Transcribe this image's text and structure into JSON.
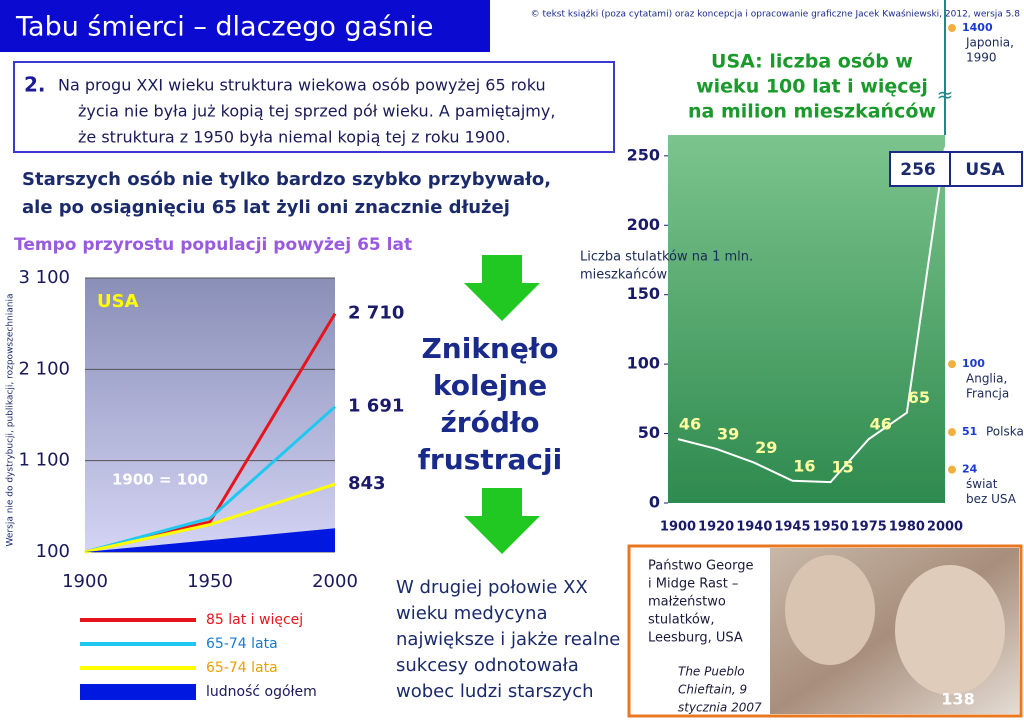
{
  "header": {
    "title": "Tabu śmierci – dlaczego gaśnie",
    "copyright": "© tekst książki (poza cytatami) oraz koncepcja i opracowanie graficzne Jacek Kwaśniewski, 2012, wersja 5.8"
  },
  "box": {
    "number": "2.",
    "lines": [
      "Na progu XXI wieku struktura wiekowa osób powyżej 65 roku",
      "życia nie była już kopią tej sprzed pół wieku. A pamiętajmy,",
      "że struktura z 1950 była niemal kopią tej z roku 1900."
    ]
  },
  "subtitle": [
    "Starszych osób nie tylko bardzo szybko przybywało,",
    "ale po osiągnięciu 65 lat żyli oni znacznie dłużej"
  ],
  "middle": {
    "headline": [
      "Zniknęło",
      "kolejne",
      "źródło",
      "frustracji"
    ],
    "text": [
      "W drugiej połowie XX",
      "wieku medycyna",
      "największe i jakże realne",
      "sukcesy odnotowała",
      "wobec ludzi starszych"
    ]
  },
  "side_note": "Wersja nie do dystrybucji, publikacji, rozpowszechniania",
  "photo": {
    "caption": [
      "Państwo George",
      "i Midge Rast –",
      "małżeństwo",
      "stulatków,",
      "Leesburg, USA"
    ],
    "source": [
      "The Pueblo",
      "Chieftain, 9",
      "stycznia 2007"
    ]
  },
  "page_number": "138",
  "chart_data": [
    {
      "type": "line",
      "title": "Tempo przyrostu populacji powyżej 65 lat",
      "annotations": [
        "USA",
        "1900 = 100"
      ],
      "x": [
        1900,
        1950,
        2000
      ],
      "xlim": [
        1900,
        2000
      ],
      "xticks": [
        1900,
        1950,
        2000
      ],
      "ylim": [
        100,
        3100
      ],
      "yticks": [
        100,
        {
          "value": 1100,
          "label": "1 100"
        },
        {
          "value": 2100,
          "label": "2 100"
        },
        {
          "value": 3100,
          "label": "3 100"
        }
      ],
      "grid": true,
      "series": [
        {
          "name": "85 lat i więcej",
          "color": "#e8141c",
          "values": [
            100,
            430,
            2710
          ],
          "value_labels": [
            null,
            null,
            "2 710"
          ]
        },
        {
          "name": "65-74 lata",
          "color": "#1ec8f0",
          "values": [
            100,
            470,
            1691
          ],
          "value_labels": [
            null,
            null,
            "1 691"
          ]
        },
        {
          "name": "65-74 lata",
          "color": "#ffff00",
          "values": [
            100,
            400,
            843
          ],
          "value_labels": [
            null,
            null,
            "843"
          ]
        },
        {
          "name": "ludność ogółem",
          "color": "#0018e0",
          "values": [
            100,
            230,
            360
          ],
          "type": "area"
        }
      ]
    },
    {
      "type": "line",
      "title": [
        "USA: liczba osób w",
        "wieku 100 lat i więcej",
        "na milion mieszkańców"
      ],
      "y_label": [
        "Liczba stulatków na 1 mln.",
        "mieszkańców"
      ],
      "categories": [
        "1900",
        "1920",
        "1940",
        "1945",
        "1950",
        "1975",
        "1980",
        "2000"
      ],
      "ylim": [
        0,
        265
      ],
      "yticks": [
        0,
        50,
        100,
        150,
        200,
        250
      ],
      "series": [
        {
          "name": "USA",
          "color": "#ffffff",
          "values": [
            46,
            39,
            29,
            16,
            15,
            46,
            65,
            256
          ]
        }
      ],
      "comparisons": [
        {
          "value": 1400,
          "label": [
            "Japonia,",
            "1990"
          ]
        },
        {
          "value": 100,
          "label": [
            "Anglia,",
            "Francja"
          ]
        },
        {
          "value": 51,
          "label": [
            "Polska"
          ]
        },
        {
          "value": 24,
          "label": [
            "świat",
            "bez USA"
          ]
        }
      ]
    }
  ]
}
